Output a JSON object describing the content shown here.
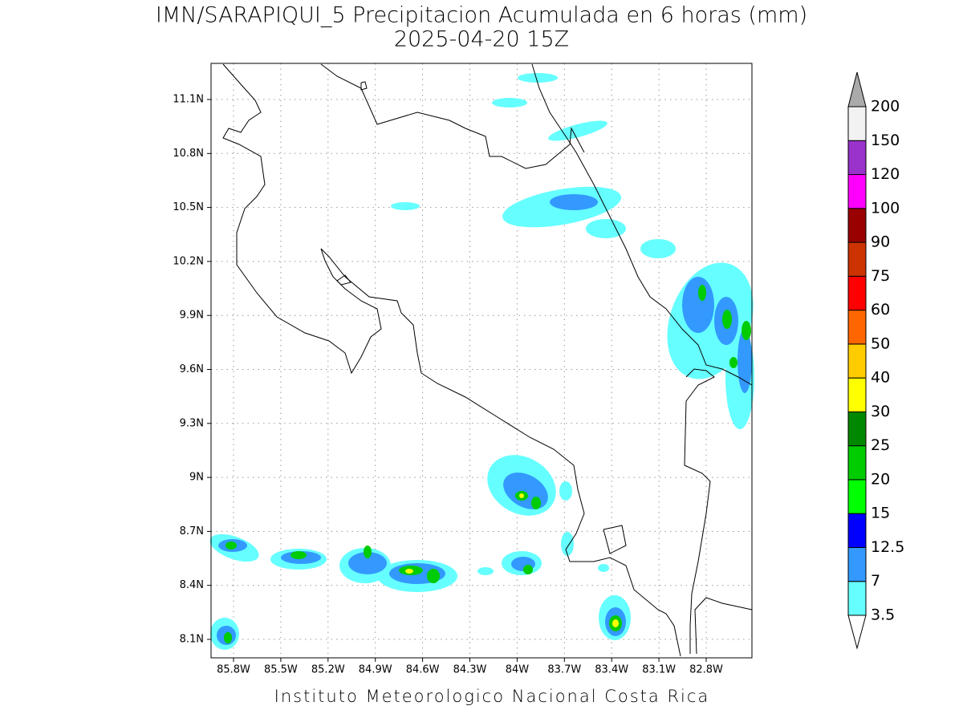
{
  "title": "IMN/SARAPIQUI_5 Precipitacion Acumulada en 6 horas (mm)",
  "subtitle": "2025-04-20 15Z",
  "x_ticks": [
    "85.8W",
    "85.5W",
    "85.2W",
    "84.9W",
    "84.6W",
    "84.3W",
    "84W",
    "83.7W",
    "83.4W",
    "83.1W",
    "82.8W"
  ],
  "y_ticks": [
    "11.1N",
    "10.8N",
    "10.5N",
    "10.2N",
    "9.9N",
    "9.6N",
    "9.3N",
    "9N",
    "8.7N",
    "8.4N",
    "8.1N"
  ],
  "colorbar": {
    "levels": [
      3.5,
      7,
      12.5,
      15,
      20,
      25,
      30,
      40,
      50,
      60,
      75,
      90,
      100,
      120,
      150,
      200
    ],
    "colors": [
      "#66ffff",
      "#3399ff",
      "#0000ff",
      "#00ff00",
      "#00cc00",
      "#008800",
      "#ffff00",
      "#ffcc00",
      "#ff6600",
      "#ff0000",
      "#cc3300",
      "#990000",
      "#ff00ff",
      "#9933cc",
      "#f2f2f2"
    ],
    "over_color": "#aaaaaa",
    "under_color": "#ffffff"
  },
  "footer": "Instituto Meteorologico Nacional Costa Rica"
}
